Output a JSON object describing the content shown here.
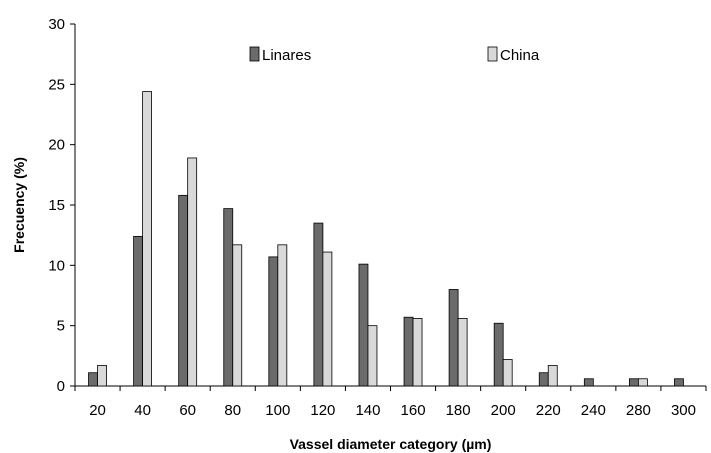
{
  "chart_data": {
    "type": "bar",
    "title": "",
    "xlabel": "Vassel diameter category (µm)",
    "ylabel": "Frecuency (%)",
    "ylim": [
      0,
      30
    ],
    "yticks": [
      0,
      5,
      10,
      15,
      20,
      25,
      30
    ],
    "grid": false,
    "legend_position": "top",
    "categories": [
      "20",
      "40",
      "60",
      "80",
      "100",
      "120",
      "140",
      "160",
      "180",
      "200",
      "220",
      "240",
      "280",
      "300"
    ],
    "series": [
      {
        "name": "Linares",
        "color": "#6b6b6b",
        "values": [
          1.1,
          12.4,
          15.8,
          14.7,
          10.7,
          13.5,
          10.1,
          5.7,
          8.0,
          5.2,
          1.1,
          0.6,
          0.6,
          0.6
        ]
      },
      {
        "name": "China",
        "color": "#d9d9d9",
        "values": [
          1.7,
          24.4,
          18.9,
          11.7,
          11.7,
          11.1,
          5.0,
          5.6,
          5.6,
          2.2,
          1.7,
          0,
          0.6,
          0
        ]
      }
    ]
  }
}
